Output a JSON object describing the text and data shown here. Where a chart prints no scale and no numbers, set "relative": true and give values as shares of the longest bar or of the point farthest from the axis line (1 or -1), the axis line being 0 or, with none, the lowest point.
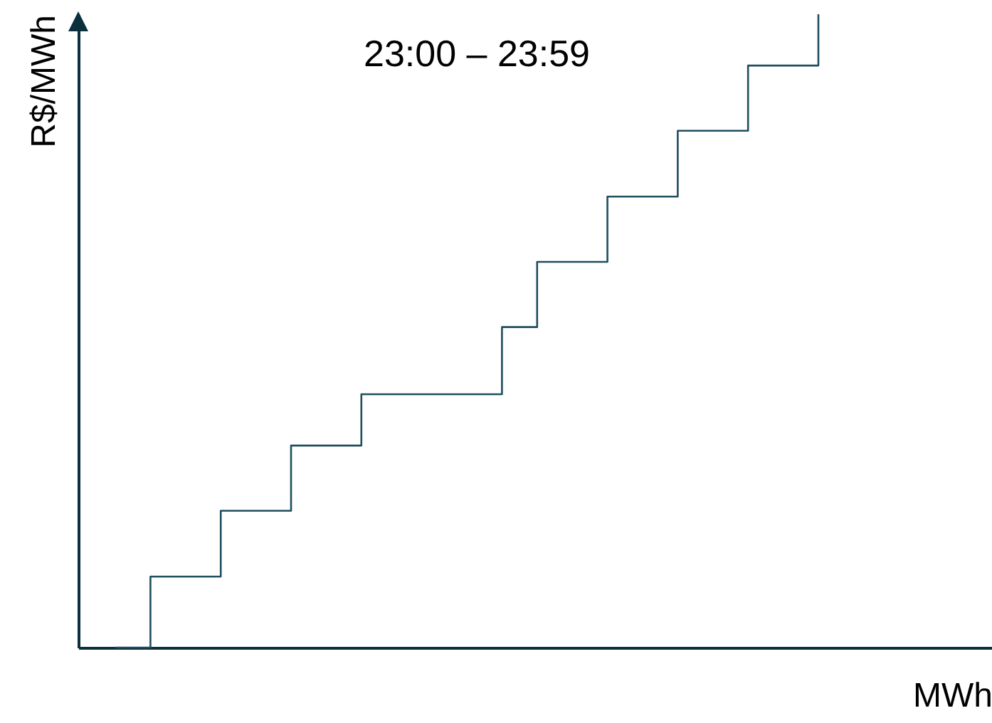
{
  "chart_data": {
    "type": "step",
    "title": "23:00 – 23:59",
    "xlabel": "MWh",
    "ylabel": "R$/MWh",
    "relative": true,
    "grid": false,
    "categories": [
      null,
      null,
      null,
      null,
      null,
      null,
      null,
      null,
      null,
      null,
      null,
      null,
      null,
      null,
      null,
      null,
      null,
      null,
      null,
      null,
      null
    ],
    "series": [
      {
        "color": "#1f4e5f",
        "values": [
          0,
          0.112,
          0.112,
          0.216,
          0.216,
          0.319,
          0.319,
          0.4,
          0.4,
          0.4,
          0.4,
          0.506,
          0.609,
          0.609,
          0.712,
          0.712,
          0.816,
          0.816,
          0.919,
          0.919,
          1
        ]
      }
    ]
  }
}
